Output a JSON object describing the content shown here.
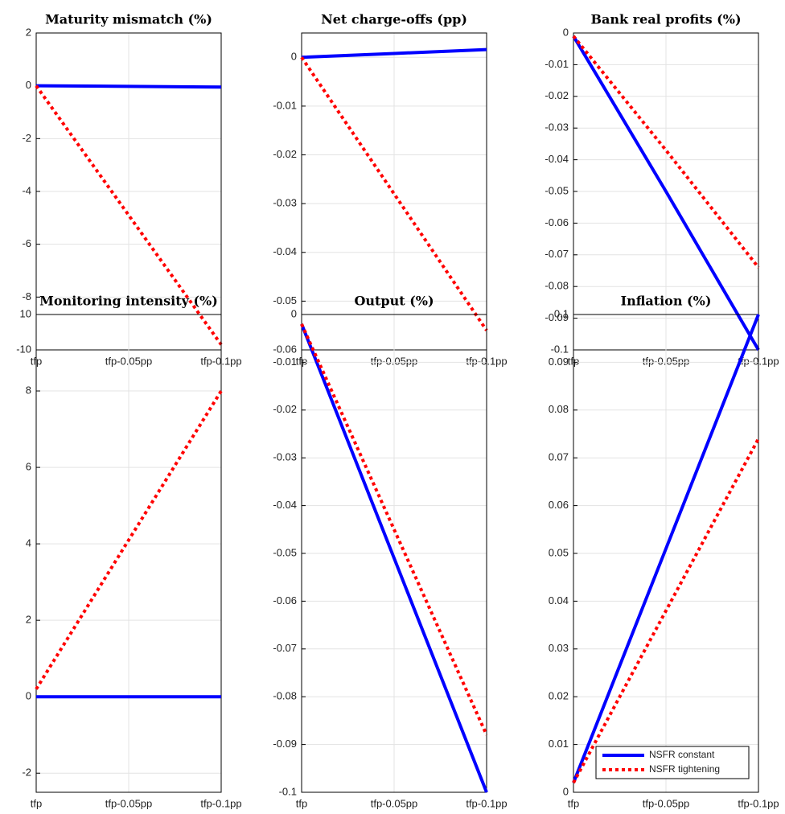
{
  "chart_data": [
    {
      "type": "line",
      "title": "Maturity mismatch (%)",
      "categories": [
        "tfp",
        "tfp-0.05pp",
        "tfp-0.1pp"
      ],
      "ylim": [
        -10,
        2
      ],
      "yticks": [
        -10,
        -8,
        -6,
        -4,
        -2,
        0,
        2
      ],
      "grid": true,
      "series": [
        {
          "color": "#0000ff",
          "linestyle": "solid",
          "values": [
            0,
            -0.02,
            -0.05
          ]
        },
        {
          "color": "#ff0000",
          "linestyle": "dotted",
          "values": [
            0,
            -4.9,
            -9.8
          ]
        }
      ]
    },
    {
      "type": "line",
      "title": "Net charge-offs (pp)",
      "categories": [
        "tfp",
        "tfp-0.05pp",
        "tfp-0.1pp"
      ],
      "ylim": [
        -0.06,
        0.005
      ],
      "yticks": [
        -0.06,
        -0.05,
        -0.04,
        -0.03,
        -0.02,
        -0.01,
        0
      ],
      "grid": true,
      "series": [
        {
          "color": "#0000ff",
          "linestyle": "solid",
          "values": [
            0,
            0.0008,
            0.0016
          ]
        },
        {
          "color": "#ff0000",
          "linestyle": "dotted",
          "values": [
            0,
            -0.028,
            -0.056
          ]
        }
      ]
    },
    {
      "type": "line",
      "title": "Bank real profits (%)",
      "categories": [
        "tfp",
        "tfp-0.05pp",
        "tfp-0.1pp"
      ],
      "ylim": [
        -0.1,
        0
      ],
      "yticks": [
        -0.1,
        -0.09,
        -0.08,
        -0.07,
        -0.06,
        -0.05,
        -0.04,
        -0.03,
        -0.02,
        -0.01,
        0
      ],
      "grid": true,
      "series": [
        {
          "color": "#0000ff",
          "linestyle": "solid",
          "values": [
            -0.001,
            -0.05,
            -0.1
          ]
        },
        {
          "color": "#ff0000",
          "linestyle": "dotted",
          "values": [
            -0.001,
            -0.037,
            -0.074
          ]
        }
      ]
    },
    {
      "type": "line",
      "title": "Monitoring intensity (%)",
      "categories": [
        "tfp",
        "tfp-0.05pp",
        "tfp-0.1pp"
      ],
      "ylim": [
        -2.5,
        10
      ],
      "yticks": [
        -2,
        0,
        2,
        4,
        6,
        8,
        10
      ],
      "grid": true,
      "series": [
        {
          "color": "#0000ff",
          "linestyle": "solid",
          "values": [
            0,
            0,
            0
          ]
        },
        {
          "color": "#ff0000",
          "linestyle": "dotted",
          "values": [
            0.2,
            4.1,
            8
          ]
        }
      ]
    },
    {
      "type": "line",
      "title": "Output (%)",
      "categories": [
        "tfp",
        "tfp-0.05pp",
        "tfp-0.1pp"
      ],
      "ylim": [
        -0.1,
        0
      ],
      "yticks": [
        -0.1,
        -0.09,
        -0.08,
        -0.07,
        -0.06,
        -0.05,
        -0.04,
        -0.03,
        -0.02,
        -0.01,
        0
      ],
      "grid": true,
      "series": [
        {
          "color": "#0000ff",
          "linestyle": "solid",
          "values": [
            -0.002,
            -0.051,
            -0.1
          ]
        },
        {
          "color": "#ff0000",
          "linestyle": "dotted",
          "values": [
            -0.002,
            -0.045,
            -0.088
          ]
        }
      ]
    },
    {
      "type": "line",
      "title": "Inflation (%)",
      "categories": [
        "tfp",
        "tfp-0.05pp",
        "tfp-0.1pp"
      ],
      "ylim": [
        0,
        0.1
      ],
      "yticks": [
        0,
        0.01,
        0.02,
        0.03,
        0.04,
        0.05,
        0.06,
        0.07,
        0.08,
        0.09,
        0.1
      ],
      "grid": true,
      "legend": "lower right",
      "series": [
        {
          "name": "NSFR constant",
          "color": "#0000ff",
          "linestyle": "solid",
          "values": [
            0.002,
            0.051,
            0.1
          ]
        },
        {
          "name": "NSFR tightening",
          "color": "#ff0000",
          "linestyle": "dotted",
          "values": [
            0.002,
            0.038,
            0.074
          ]
        }
      ]
    }
  ]
}
